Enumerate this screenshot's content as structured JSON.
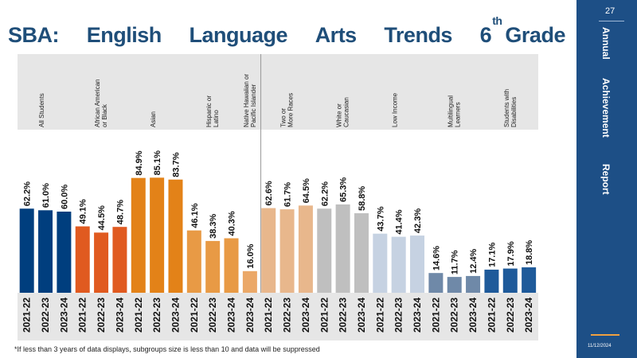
{
  "title": {
    "words": [
      "SBA:",
      "English",
      "Language",
      "Arts",
      "Trends"
    ],
    "grade_number": "6",
    "grade_suffix": "th",
    "grade_word": "Grade"
  },
  "sidebar": {
    "page_number": "27",
    "words": [
      "Annual",
      "Achievement",
      "Report"
    ],
    "date": "11/12/2024"
  },
  "footnote": "*If less than 3 years of data displays, subgroups size is less than 10 and data will be suppressed",
  "chart_data": {
    "type": "bar",
    "ylim": [
      0,
      100
    ],
    "groups": [
      {
        "label": "All Students",
        "color": "#003e7e",
        "years": [
          "2021-22",
          "2022-23",
          "2023-24"
        ],
        "values": [
          62.2,
          61.0,
          60.0
        ],
        "labels": [
          "62.2%",
          "61.0%",
          "60.0%"
        ]
      },
      {
        "label": "African American or Black",
        "color": "#e05a20",
        "years": [
          "2021-22",
          "2022-23",
          "2023-24"
        ],
        "values": [
          49.1,
          44.5,
          48.7
        ],
        "labels": [
          "49.1%",
          "44.5%",
          "48.7%"
        ]
      },
      {
        "label": "Asian",
        "color": "#e38218",
        "years": [
          "2021-22",
          "2022-23",
          "2023-24"
        ],
        "values": [
          84.9,
          85.1,
          83.7
        ],
        "labels": [
          "84.9%",
          "85.1%",
          "83.7%"
        ]
      },
      {
        "label": "Hispanic or Latino",
        "color": "#e89a45",
        "years": [
          "2021-22",
          "2022-23",
          "2023-24"
        ],
        "values": [
          46.1,
          38.3,
          40.3
        ],
        "labels": [
          "46.1%",
          "38.3%",
          "40.3%"
        ]
      },
      {
        "label": "Native Hawaiian or Pacific Islander",
        "color": "#eba868",
        "years": [
          "2023-24"
        ],
        "values": [
          16.0
        ],
        "labels": [
          "16.0%"
        ]
      },
      {
        "label": "Two or More Races",
        "color": "#e8b78c",
        "years": [
          "2021-22",
          "2022-23",
          "2023-24"
        ],
        "values": [
          62.6,
          61.7,
          64.5
        ],
        "labels": [
          "62.6%",
          "61.7%",
          "64.5%"
        ]
      },
      {
        "label": "White or Caucasian",
        "color": "#bfbfbf",
        "years": [
          "2021-22",
          "2022-23",
          "2023-24"
        ],
        "values": [
          62.2,
          65.3,
          58.8
        ],
        "labels": [
          "62.2%",
          "65.3%",
          "58.8%"
        ]
      },
      {
        "label": "Low Income",
        "color": "#c6d2e2",
        "years": [
          "2021-22",
          "2022-23",
          "2023-24"
        ],
        "values": [
          43.7,
          41.4,
          42.3
        ],
        "labels": [
          "43.7%",
          "41.4%",
          "42.3%"
        ]
      },
      {
        "label": "Multilingual Learners",
        "color": "#6f89a8",
        "years": [
          "2021-22",
          "2022-23",
          "2023-24"
        ],
        "values": [
          14.6,
          11.7,
          12.4
        ],
        "labels": [
          "14.6%",
          "11.7%",
          "12.4%"
        ]
      },
      {
        "label": "Students with Disabilities",
        "color": "#1e5a9a",
        "years": [
          "2021-22",
          "2022-23",
          "2023-24"
        ],
        "values": [
          17.1,
          17.9,
          18.8
        ],
        "labels": [
          "17.1%",
          "17.9%",
          "18.8%"
        ]
      }
    ]
  }
}
